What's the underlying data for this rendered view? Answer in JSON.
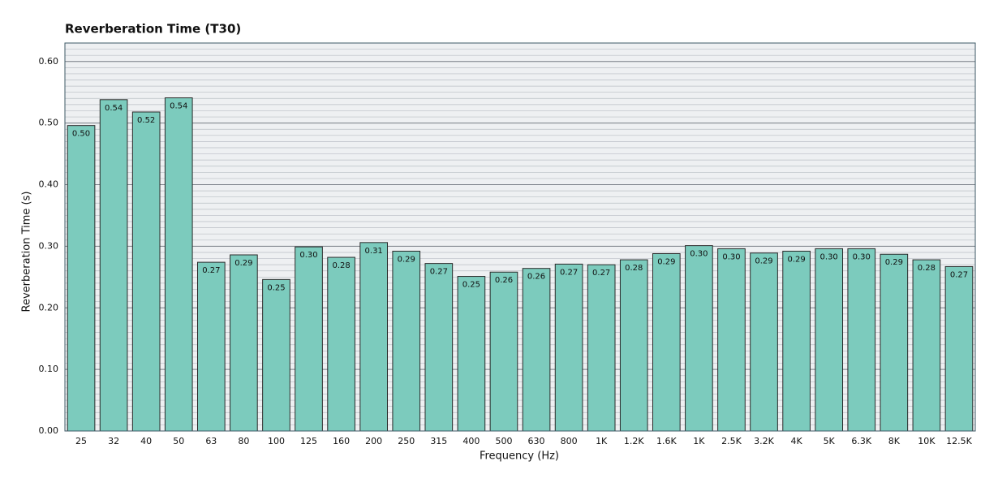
{
  "chart_data": {
    "type": "bar",
    "title": "Reverberation Time (T30)",
    "x_label": "Frequency (Hz)",
    "y_label": "Reverberation Time (s)",
    "categories": [
      "25",
      "32",
      "40",
      "50",
      "63",
      "80",
      "100",
      "125",
      "160",
      "200",
      "250",
      "315",
      "400",
      "500",
      "630",
      "800",
      "1K",
      "1.2K",
      "1.6K",
      "1K",
      "2.5K",
      "3.2K",
      "4K",
      "5K",
      "6.3K",
      "8K",
      "10K",
      "12.5K"
    ],
    "values": [
      0.496,
      0.538,
      0.518,
      0.541,
      0.274,
      0.286,
      0.246,
      0.299,
      0.282,
      0.306,
      0.292,
      0.272,
      0.251,
      0.258,
      0.264,
      0.271,
      0.27,
      0.278,
      0.288,
      0.301,
      0.296,
      0.289,
      0.292,
      0.296,
      0.296,
      0.287,
      0.278,
      0.267
    ],
    "value_labels": [
      "0.50",
      "0.54",
      "0.52",
      "0.54",
      "0.27",
      "0.29",
      "0.25",
      "0.30",
      "0.28",
      "0.31",
      "0.29",
      "0.27",
      "0.25",
      "0.26",
      "0.26",
      "0.27",
      "0.27",
      "0.28",
      "0.29",
      "0.30",
      "0.30",
      "0.29",
      "0.29",
      "0.30",
      "0.30",
      "0.29",
      "0.28",
      "0.27"
    ],
    "color": "#7ccbbd",
    "ylim": [
      0,
      0.63
    ],
    "yticks": [
      {
        "value": 0,
        "label": "0.00"
      },
      {
        "value": 0.1,
        "label": "0.10"
      },
      {
        "value": 0.2,
        "label": "0.20"
      },
      {
        "value": 0.3,
        "label": "0.30"
      },
      {
        "value": 0.4,
        "label": "0.40"
      },
      {
        "value": 0.5,
        "label": "0.50"
      },
      {
        "value": 0.6,
        "label": "0.60"
      }
    ],
    "grid": true,
    "minor_grid": 0.01
  }
}
